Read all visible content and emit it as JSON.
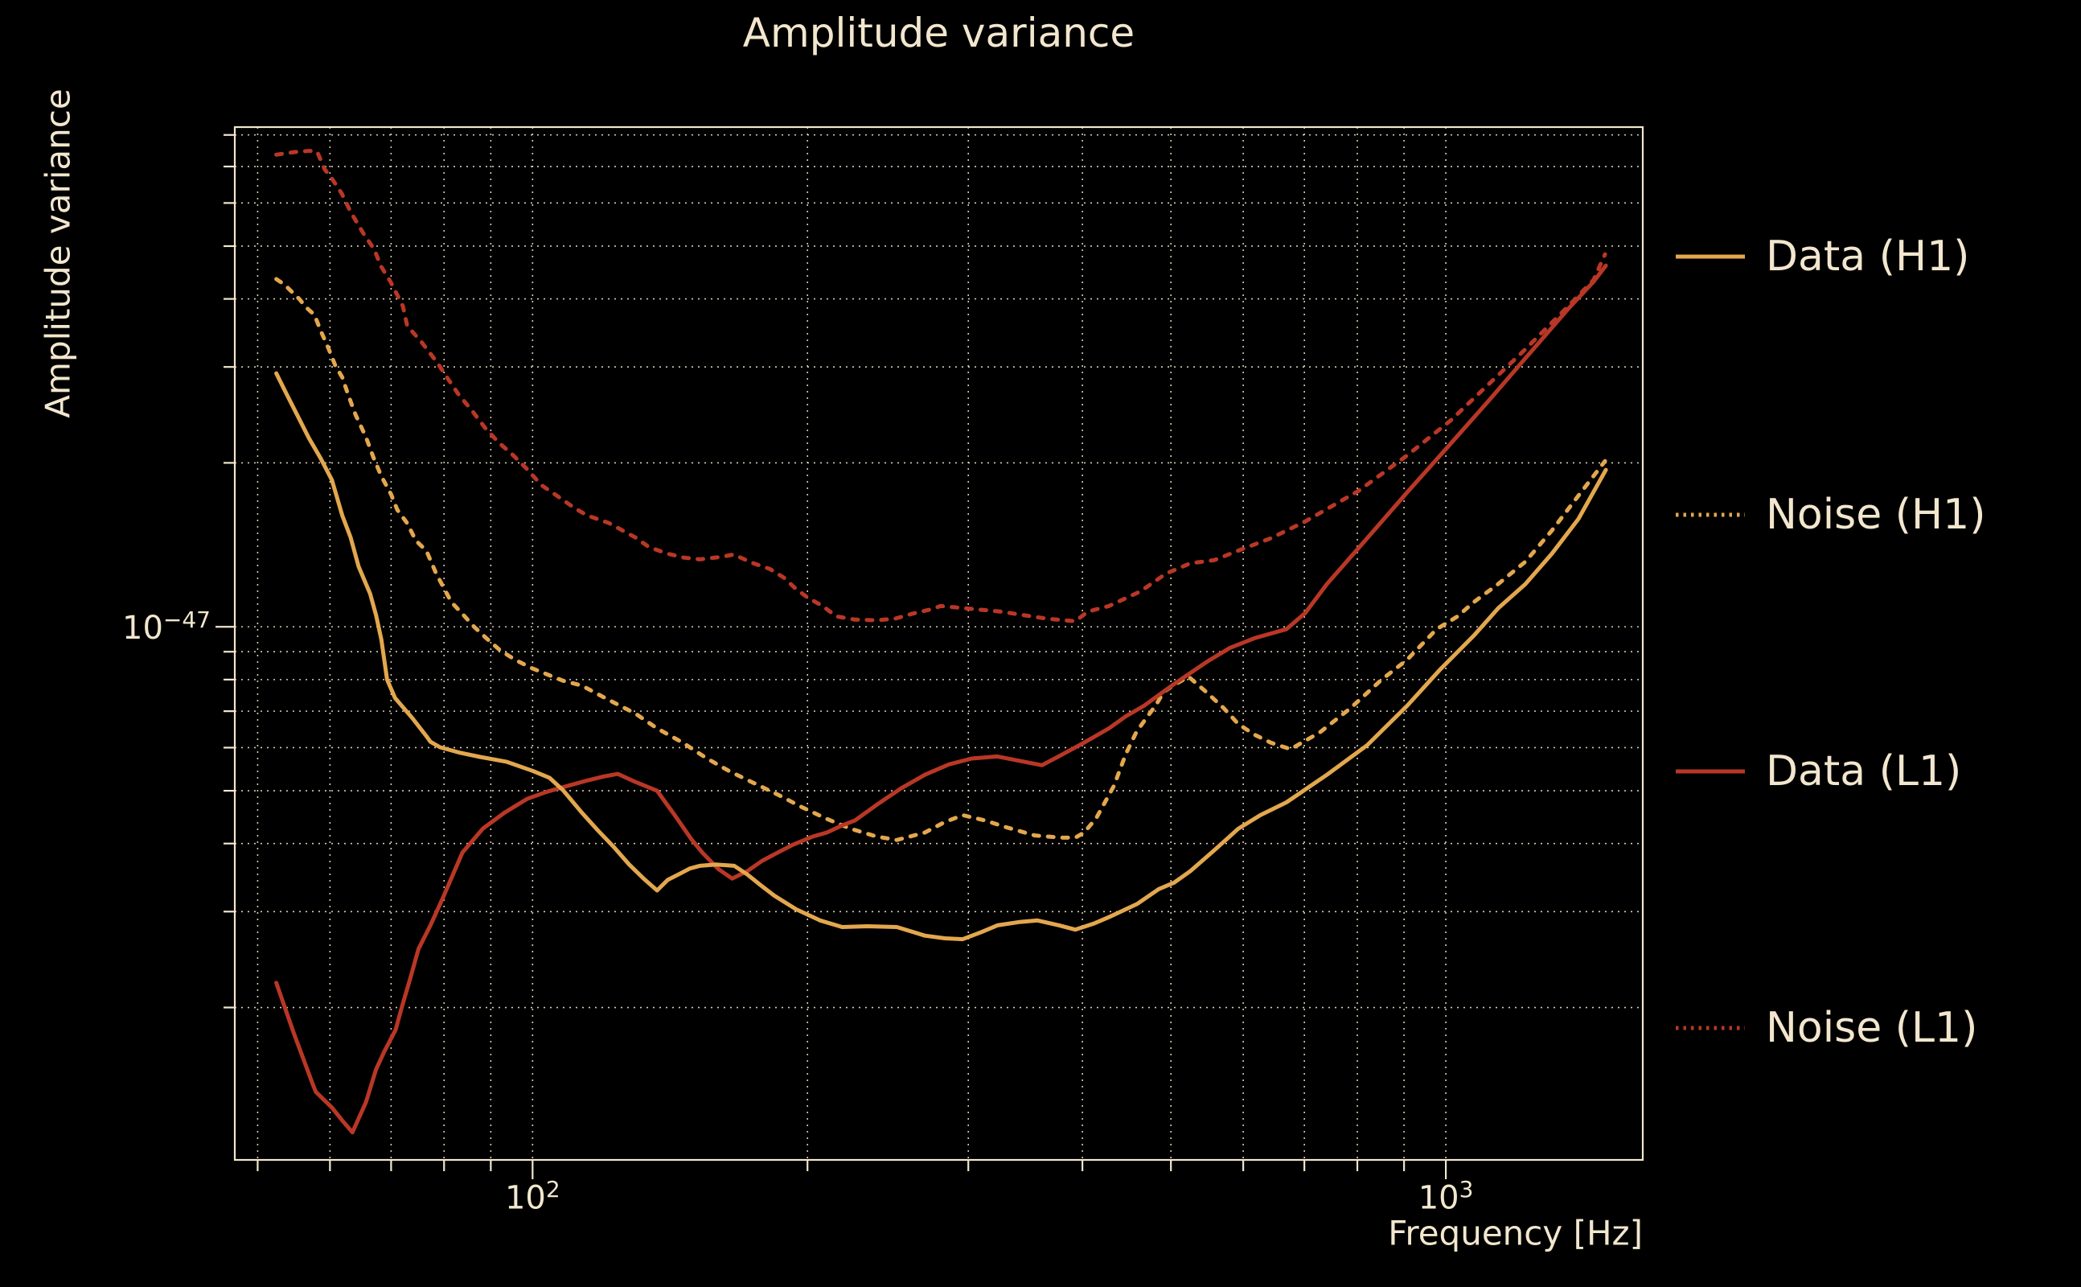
{
  "title": "Amplitude variance",
  "colors": {
    "background": "#000000",
    "text": "#f2e7ce",
    "grid": "#efe4c8",
    "frame": "#f2e7ce",
    "h1": "#e3a74e",
    "l1": "#b93726"
  },
  "axes": {
    "x": {
      "label": "Frequency [Hz]",
      "scale": "log",
      "ticks": [
        {
          "base": "10",
          "exp": "2",
          "value": 100
        },
        {
          "base": "10",
          "exp": "3",
          "value": 1000
        }
      ]
    },
    "y": {
      "label": "Amplitude variance",
      "scale": "log",
      "ticks": [
        {
          "base": "10",
          "exp": "−47",
          "value": 1
        }
      ]
    }
  },
  "legend": [
    {
      "label": "Data (H1)",
      "color": "#e3a74e",
      "style": "solid"
    },
    {
      "label": "Noise (H1)",
      "color": "#e3a74e",
      "style": "dotted"
    },
    {
      "label": "Data (L1)",
      "color": "#b93726",
      "style": "solid"
    },
    {
      "label": "Noise (L1)",
      "color": "#b93726",
      "style": "dotted"
    }
  ],
  "chart_data": {
    "type": "line",
    "title": "Amplitude variance",
    "xlabel": "Frequency [Hz]",
    "ylabel": "Amplitude variance",
    "xscale": "log",
    "yscale": "log",
    "grid": true,
    "legend_position": "right-outside",
    "xlim": [
      47.2,
      1643
    ],
    "y_unit": "1e-47",
    "ylim": [
      0.105,
      8.27
    ],
    "series": [
      {
        "name": "noise_l1",
        "label": "Noise (L1)",
        "color": "#b93726",
        "style": "dotted",
        "points": [
          [
            52.4,
            7.36
          ],
          [
            54.8,
            7.44
          ],
          [
            57,
            7.48
          ],
          [
            58.1,
            7.45
          ],
          [
            59.2,
            6.92
          ],
          [
            60.3,
            6.65
          ],
          [
            61.8,
            6.25
          ],
          [
            63.2,
            5.78
          ],
          [
            65.3,
            5.27
          ],
          [
            67.1,
            4.93
          ],
          [
            68.2,
            4.6
          ],
          [
            69.9,
            4.3
          ],
          [
            72.1,
            3.88
          ],
          [
            72.9,
            3.57
          ],
          [
            75.6,
            3.33
          ],
          [
            78.6,
            3.06
          ],
          [
            80.7,
            2.86
          ],
          [
            83,
            2.67
          ],
          [
            85.9,
            2.49
          ],
          [
            88.7,
            2.32
          ],
          [
            91.8,
            2.18
          ],
          [
            95.1,
            2.07
          ],
          [
            98.4,
            1.955
          ],
          [
            102.3,
            1.82
          ],
          [
            106.9,
            1.73
          ],
          [
            111.3,
            1.65
          ],
          [
            114.9,
            1.6
          ],
          [
            121.2,
            1.551
          ],
          [
            129.6,
            1.459
          ],
          [
            134.2,
            1.4
          ],
          [
            140.6,
            1.362
          ],
          [
            146.4,
            1.34
          ],
          [
            152.4,
            1.33
          ],
          [
            161.1,
            1.344
          ],
          [
            166,
            1.358
          ],
          [
            174.5,
            1.308
          ],
          [
            181.9,
            1.277
          ],
          [
            188.4,
            1.231
          ],
          [
            194.3,
            1.173
          ],
          [
            200.3,
            1.13
          ],
          [
            207.8,
            1.092
          ],
          [
            215.1,
            1.045
          ],
          [
            225.4,
            1.031
          ],
          [
            238.1,
            1.028
          ],
          [
            249.4,
            1.035
          ],
          [
            260.1,
            1.056
          ],
          [
            273.8,
            1.078
          ],
          [
            279.8,
            1.092
          ],
          [
            324.8,
            1.067
          ],
          [
            365.4,
            1.035
          ],
          [
            392.8,
            1.024
          ],
          [
            405.8,
            1.067
          ],
          [
            427.7,
            1.092
          ],
          [
            462.8,
            1.161
          ],
          [
            493.7,
            1.252
          ],
          [
            525,
            1.308
          ],
          [
            558,
            1.326
          ],
          [
            592.6,
            1.38
          ],
          [
            643,
            1.454
          ],
          [
            701.5,
            1.561
          ],
          [
            802.6,
            1.777
          ],
          [
            907,
            2.064
          ],
          [
            1011,
            2.389
          ],
          [
            1108,
            2.765
          ],
          [
            1222,
            3.233
          ],
          [
            1352,
            3.832
          ],
          [
            1451,
            4.332
          ],
          [
            1494,
            4.83
          ]
        ]
      },
      {
        "name": "noise_h1",
        "label": "Noise (H1)",
        "color": "#e3a74e",
        "style": "dotted",
        "points": [
          [
            52.4,
            4.35
          ],
          [
            53.5,
            4.25
          ],
          [
            54.6,
            4.11
          ],
          [
            55.6,
            3.99
          ],
          [
            56.4,
            3.87
          ],
          [
            57.7,
            3.74
          ],
          [
            58.6,
            3.5
          ],
          [
            59.8,
            3.24
          ],
          [
            60.8,
            3.02
          ],
          [
            61.9,
            2.87
          ],
          [
            62.8,
            2.67
          ],
          [
            64,
            2.45
          ],
          [
            65.7,
            2.23
          ],
          [
            67,
            2.04
          ],
          [
            68.3,
            1.89
          ],
          [
            70,
            1.75
          ],
          [
            71.1,
            1.64
          ],
          [
            72.9,
            1.55
          ],
          [
            74.5,
            1.44
          ],
          [
            76.5,
            1.38
          ],
          [
            78.3,
            1.26
          ],
          [
            79.7,
            1.19
          ],
          [
            81.5,
            1.11
          ],
          [
            83.8,
            1.056
          ],
          [
            86.3,
            1.0
          ],
          [
            89,
            0.953
          ],
          [
            92.1,
            0.906
          ],
          [
            95.7,
            0.87
          ],
          [
            99.6,
            0.841
          ],
          [
            103.7,
            0.818
          ],
          [
            108,
            0.796
          ],
          [
            113.2,
            0.78
          ],
          [
            121.2,
            0.734
          ],
          [
            129.6,
            0.693
          ],
          [
            136.9,
            0.651
          ],
          [
            146,
            0.613
          ],
          [
            155,
            0.574
          ],
          [
            164,
            0.544
          ],
          [
            174.5,
            0.517
          ],
          [
            186,
            0.491
          ],
          [
            197,
            0.467
          ],
          [
            209.9,
            0.444
          ],
          [
            222.9,
            0.426
          ],
          [
            238.1,
            0.412
          ],
          [
            250.5,
            0.406
          ],
          [
            268.9,
            0.419
          ],
          [
            282.7,
            0.438
          ],
          [
            295.8,
            0.451
          ],
          [
            312.9,
            0.441
          ],
          [
            329.4,
            0.429
          ],
          [
            354.7,
            0.414
          ],
          [
            379.5,
            0.41
          ],
          [
            392.8,
            0.41
          ],
          [
            401.8,
            0.419
          ],
          [
            414.1,
            0.445
          ],
          [
            433,
            0.51
          ],
          [
            446.3,
            0.584
          ],
          [
            458.1,
            0.64
          ],
          [
            471.4,
            0.685
          ],
          [
            480.9,
            0.716
          ],
          [
            490.9,
            0.759
          ],
          [
            501.6,
            0.778
          ],
          [
            522.7,
            0.81
          ],
          [
            546.6,
            0.759
          ],
          [
            571.3,
            0.709
          ],
          [
            592.6,
            0.663
          ],
          [
            617.2,
            0.634
          ],
          [
            643,
            0.613
          ],
          [
            676.1,
            0.596
          ],
          [
            727.8,
            0.64
          ],
          [
            786.3,
            0.709
          ],
          [
            850,
            0.799
          ],
          [
            907,
            0.87
          ],
          [
            977,
            0.99
          ],
          [
            1030,
            1.045
          ],
          [
            1073,
            1.11
          ],
          [
            1141,
            1.198
          ],
          [
            1222,
            1.317
          ],
          [
            1307,
            1.503
          ],
          [
            1397,
            1.741
          ],
          [
            1494,
            2.015
          ]
        ]
      },
      {
        "name": "data_l1",
        "label": "Data (L1)",
        "color": "#b93726",
        "style": "solid",
        "points": [
          [
            52.4,
            0.222
          ],
          [
            54.8,
            0.179
          ],
          [
            57.5,
            0.144
          ],
          [
            57.9,
            0.14
          ],
          [
            60.3,
            0.131
          ],
          [
            61.9,
            0.124
          ],
          [
            63.5,
            0.118
          ],
          [
            65.7,
            0.134
          ],
          [
            67.4,
            0.154
          ],
          [
            68.8,
            0.166
          ],
          [
            70.8,
            0.182
          ],
          [
            71.9,
            0.2
          ],
          [
            73.5,
            0.227
          ],
          [
            75,
            0.256
          ],
          [
            77.3,
            0.283
          ],
          [
            79.7,
            0.317
          ],
          [
            83.8,
            0.385
          ],
          [
            88.2,
            0.426
          ],
          [
            93.2,
            0.456
          ],
          [
            98.6,
            0.483
          ],
          [
            103.7,
            0.498
          ],
          [
            109.1,
            0.51
          ],
          [
            114.7,
            0.522
          ],
          [
            119.5,
            0.531
          ],
          [
            124,
            0.537
          ],
          [
            129.6,
            0.519
          ],
          [
            136.9,
            0.5
          ],
          [
            143.1,
            0.451
          ],
          [
            149.3,
            0.407
          ],
          [
            153.4,
            0.385
          ],
          [
            159.8,
            0.359
          ],
          [
            165.4,
            0.345
          ],
          [
            171.8,
            0.356
          ],
          [
            178.5,
            0.372
          ],
          [
            186.6,
            0.387
          ],
          [
            192.8,
            0.398
          ],
          [
            202.7,
            0.412
          ],
          [
            210,
            0.419
          ],
          [
            218.3,
            0.432
          ],
          [
            225.4,
            0.441
          ],
          [
            238.1,
            0.471
          ],
          [
            253.2,
            0.505
          ],
          [
            268.9,
            0.535
          ],
          [
            285.7,
            0.559
          ],
          [
            302.6,
            0.573
          ],
          [
            322.8,
            0.578
          ],
          [
            345.6,
            0.565
          ],
          [
            361.3,
            0.557
          ],
          [
            379.5,
            0.582
          ],
          [
            401.8,
            0.613
          ],
          [
            427.7,
            0.651
          ],
          [
            446.3,
            0.685
          ],
          [
            467.1,
            0.716
          ],
          [
            504,
            0.785
          ],
          [
            546.6,
            0.861
          ],
          [
            580.2,
            0.915
          ],
          [
            617.2,
            0.953
          ],
          [
            669,
            0.99
          ],
          [
            701.5,
            1.06
          ],
          [
            741,
            1.198
          ],
          [
            820,
            1.454
          ],
          [
            907,
            1.765
          ],
          [
            1006,
            2.143
          ],
          [
            1114,
            2.6
          ],
          [
            1231,
            3.156
          ],
          [
            1361,
            3.832
          ],
          [
            1451,
            4.3
          ],
          [
            1497,
            4.604
          ]
        ]
      },
      {
        "name": "data_h1",
        "label": "Data (H1)",
        "color": "#e3a74e",
        "style": "solid",
        "points": [
          [
            52.4,
            2.92
          ],
          [
            53.7,
            2.69
          ],
          [
            55.3,
            2.44
          ],
          [
            56.9,
            2.22
          ],
          [
            58.6,
            2.04
          ],
          [
            60.3,
            1.86
          ],
          [
            61.9,
            1.6
          ],
          [
            63.2,
            1.46
          ],
          [
            64.5,
            1.29
          ],
          [
            66.4,
            1.15
          ],
          [
            67.4,
            1.05
          ],
          [
            68.3,
            0.947
          ],
          [
            68.9,
            0.855
          ],
          [
            69.3,
            0.8
          ],
          [
            70.7,
            0.74
          ],
          [
            73.9,
            0.679
          ],
          [
            76.5,
            0.63
          ],
          [
            77.3,
            0.615
          ],
          [
            79.2,
            0.601
          ],
          [
            83,
            0.588
          ],
          [
            87.6,
            0.577
          ],
          [
            93.7,
            0.565
          ],
          [
            100,
            0.544
          ],
          [
            104.4,
            0.528
          ],
          [
            108,
            0.501
          ],
          [
            113.2,
            0.456
          ],
          [
            117.9,
            0.423
          ],
          [
            122.6,
            0.395
          ],
          [
            127.6,
            0.366
          ],
          [
            132.3,
            0.345
          ],
          [
            136.9,
            0.328
          ],
          [
            140.6,
            0.343
          ],
          [
            144.9,
            0.352
          ],
          [
            148.7,
            0.36
          ],
          [
            152.4,
            0.364
          ],
          [
            158.7,
            0.366
          ],
          [
            166.3,
            0.364
          ],
          [
            171.8,
            0.351
          ],
          [
            177.5,
            0.336
          ],
          [
            183.9,
            0.321
          ],
          [
            194.3,
            0.303
          ],
          [
            206.5,
            0.289
          ],
          [
            218.3,
            0.281
          ],
          [
            232.6,
            0.282
          ],
          [
            250.5,
            0.281
          ],
          [
            268.9,
            0.271
          ],
          [
            282.7,
            0.268
          ],
          [
            295.8,
            0.267
          ],
          [
            309.8,
            0.275
          ],
          [
            322.8,
            0.283
          ],
          [
            340.9,
            0.287
          ],
          [
            357.2,
            0.289
          ],
          [
            377.2,
            0.283
          ],
          [
            392.8,
            0.278
          ],
          [
            411.2,
            0.285
          ],
          [
            427.7,
            0.293
          ],
          [
            459.5,
            0.31
          ],
          [
            484.9,
            0.33
          ],
          [
            504,
            0.339
          ],
          [
            525,
            0.356
          ],
          [
            558,
            0.389
          ],
          [
            592.6,
            0.426
          ],
          [
            626.4,
            0.451
          ],
          [
            669,
            0.476
          ],
          [
            741,
            0.535
          ],
          [
            820,
            0.606
          ],
          [
            907,
            0.716
          ],
          [
            984,
            0.832
          ],
          [
            1073,
            0.963
          ],
          [
            1141,
            1.081
          ],
          [
            1222,
            1.198
          ],
          [
            1307,
            1.363
          ],
          [
            1397,
            1.578
          ],
          [
            1497,
            1.941
          ]
        ]
      }
    ]
  }
}
